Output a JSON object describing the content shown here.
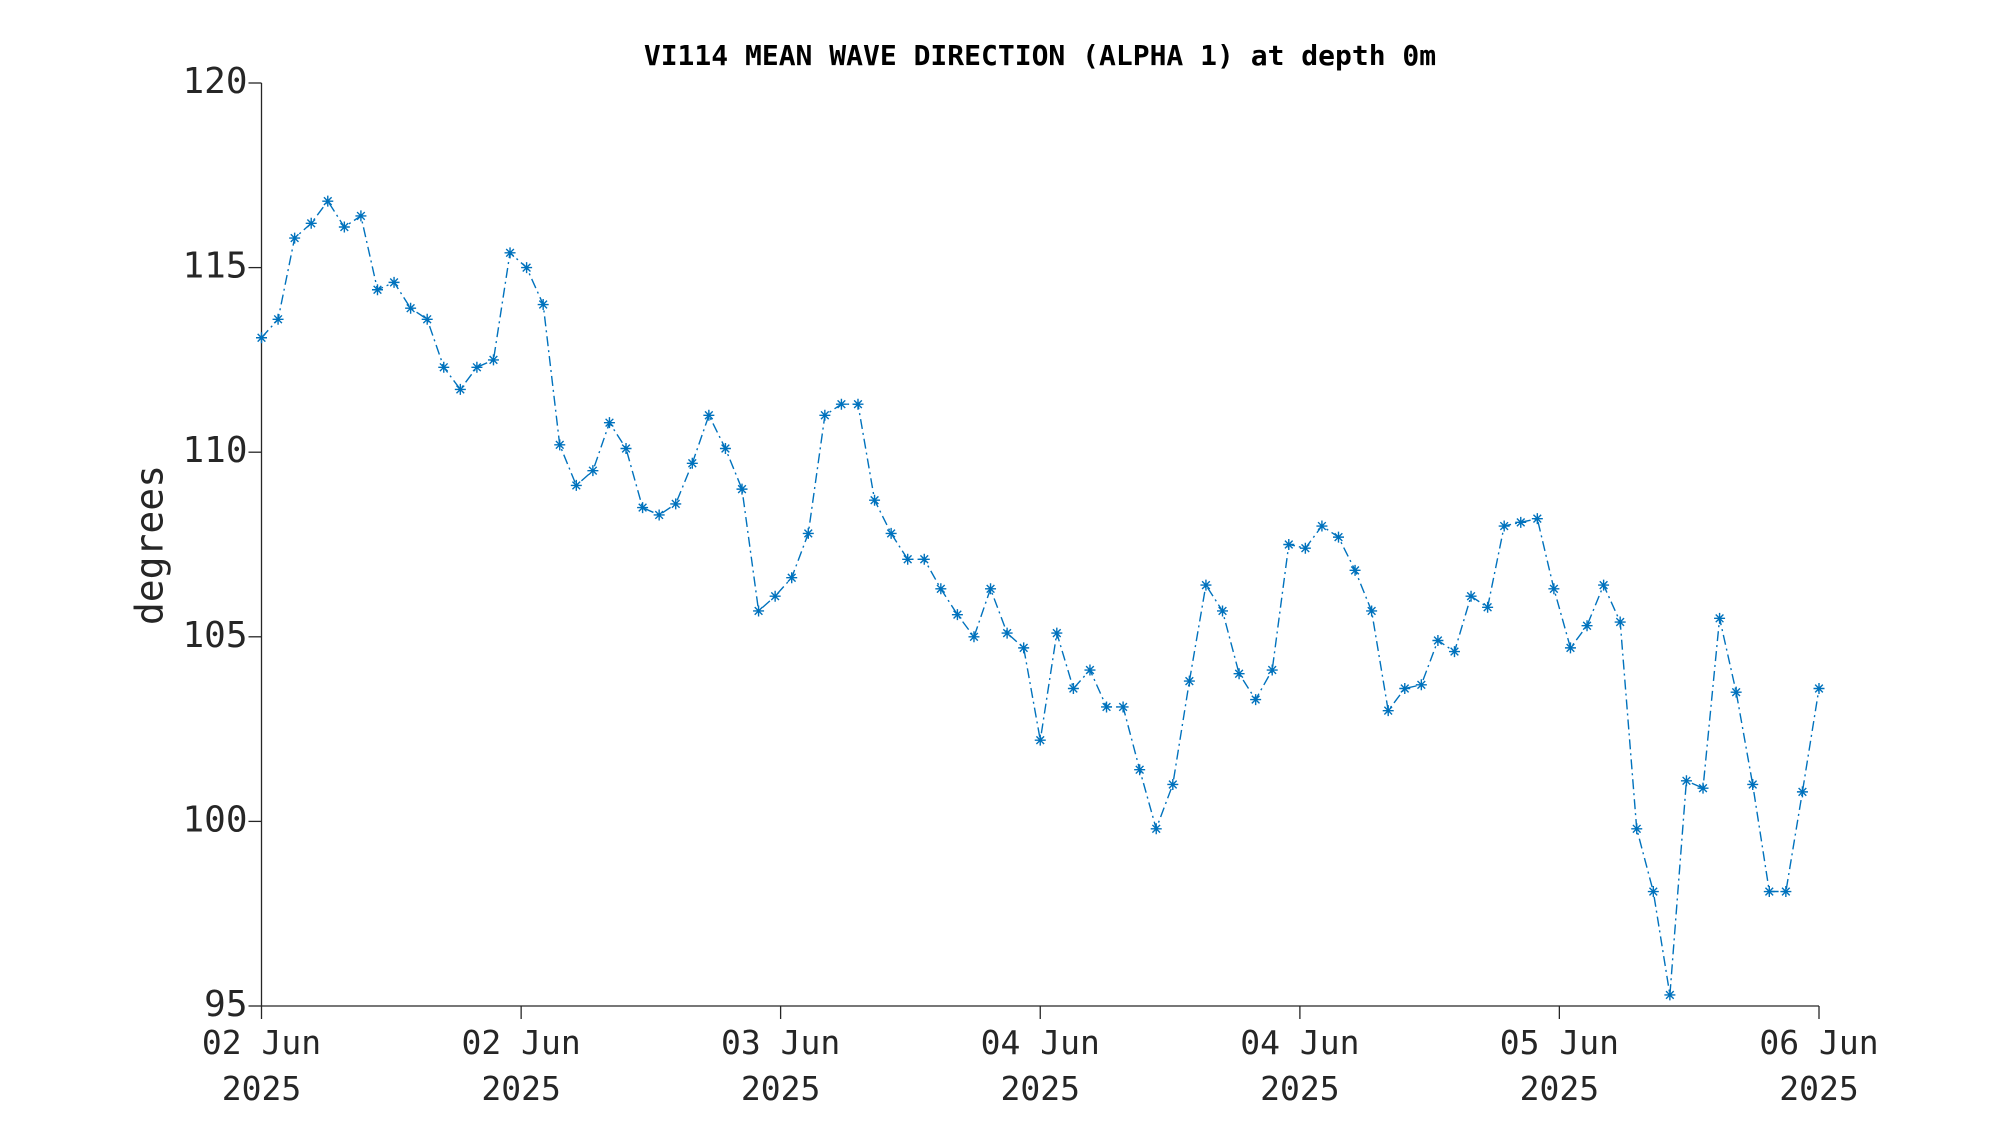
{
  "chart_data": {
    "type": "line",
    "title": "VI114 MEAN WAVE DIRECTION (ALPHA 1) at depth 0m",
    "ylabel": "degrees",
    "color": "#0072bd",
    "marker": "asterisk",
    "x": [
      0,
      1,
      2,
      3,
      4,
      5,
      6,
      7,
      8,
      9,
      10,
      11,
      12,
      13,
      14,
      15,
      16,
      17,
      18,
      19,
      20,
      21,
      22,
      23,
      24,
      25,
      26,
      27,
      28,
      29,
      30,
      31,
      32,
      33,
      34,
      35,
      36,
      37,
      38,
      39,
      40,
      41,
      42,
      43,
      44,
      45,
      46,
      47,
      48,
      49,
      50,
      51,
      52,
      53,
      54,
      55,
      56,
      57,
      58,
      59,
      60,
      61,
      62,
      63,
      64,
      65,
      66,
      67,
      68,
      69,
      70,
      71,
      72,
      73,
      74,
      75,
      76,
      77,
      78,
      79,
      80,
      81,
      82,
      83,
      84,
      85,
      86,
      87,
      88,
      89,
      90,
      91,
      92,
      93,
      94
    ],
    "values": [
      113.1,
      113.6,
      115.8,
      116.2,
      116.8,
      116.1,
      116.4,
      114.4,
      114.6,
      113.9,
      113.6,
      112.3,
      111.7,
      112.3,
      112.5,
      115.4,
      115.0,
      114.0,
      110.2,
      109.1,
      109.5,
      110.8,
      110.1,
      108.5,
      108.3,
      108.6,
      109.7,
      111.0,
      110.1,
      109.0,
      105.7,
      106.1,
      106.6,
      107.8,
      111.0,
      111.3,
      111.3,
      108.7,
      107.8,
      107.1,
      107.1,
      106.3,
      105.6,
      105.0,
      106.3,
      105.1,
      104.7,
      102.2,
      105.1,
      103.6,
      104.1,
      103.1,
      103.1,
      101.4,
      99.8,
      101.0,
      103.8,
      106.4,
      105.7,
      104.0,
      103.3,
      104.1,
      107.5,
      107.4,
      108.0,
      107.7,
      106.8,
      105.7,
      103.0,
      103.6,
      103.7,
      104.9,
      104.6,
      106.1,
      105.8,
      108.0,
      108.1,
      108.2,
      106.3,
      104.7,
      105.3,
      106.4,
      105.4,
      99.8,
      98.1,
      95.3,
      101.1,
      100.9,
      105.5,
      103.5,
      101.0,
      98.1,
      98.1,
      100.8,
      103.6
    ],
    "xlim": [
      0,
      94
    ],
    "xticks": [
      {
        "value": 0,
        "label": "02 Jun\n2025"
      },
      {
        "value": 15.67,
        "label": "02 Jun\n2025"
      },
      {
        "value": 31.33,
        "label": "03 Jun\n2025"
      },
      {
        "value": 47,
        "label": "04 Jun\n2025"
      },
      {
        "value": 62.67,
        "label": "04 Jun\n2025"
      },
      {
        "value": 78.33,
        "label": "05 Jun\n2025"
      },
      {
        "value": 94,
        "label": "06 Jun\n2025"
      }
    ],
    "ylim": [
      95,
      120
    ],
    "yticks": [
      95,
      100,
      105,
      110,
      115,
      120
    ],
    "grid": false
  }
}
